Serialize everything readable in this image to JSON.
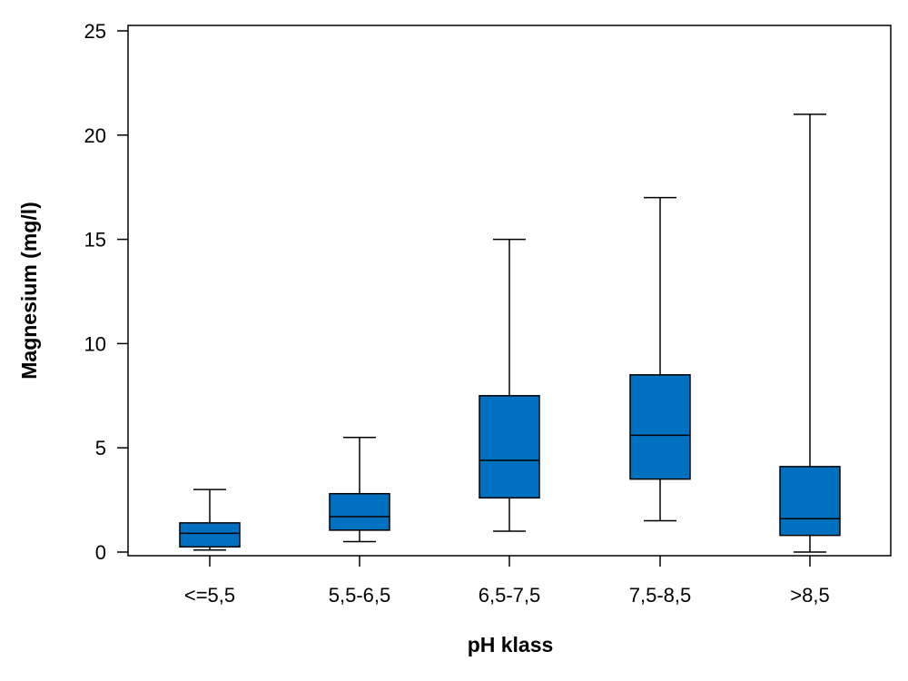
{
  "chart_data": {
    "type": "box",
    "title": "",
    "xlabel": "pH klass",
    "ylabel": "Magnesium (mg/l)",
    "ylim": [
      0,
      25
    ],
    "yticks": [
      0,
      5,
      10,
      15,
      20,
      25
    ],
    "grid": false,
    "legend": "none",
    "box_color": "#0070C0",
    "outline_color": "#000000",
    "categories": [
      "<=5,5",
      "5,5-6,5",
      "6,5-7,5",
      "7,5-8,5",
      ">8,5"
    ],
    "boxes": [
      {
        "category": "<=5,5",
        "min": 0.1,
        "q1": 0.25,
        "median": 0.9,
        "q3": 1.4,
        "max": 3.0
      },
      {
        "category": "5,5-6,5",
        "min": 0.5,
        "q1": 1.05,
        "median": 1.7,
        "q3": 2.8,
        "max": 5.5
      },
      {
        "category": "6,5-7,5",
        "min": 1.0,
        "q1": 2.6,
        "median": 4.4,
        "q3": 7.5,
        "max": 15.0
      },
      {
        "category": "7,5-8,5",
        "min": 1.5,
        "q1": 3.5,
        "median": 5.6,
        "q3": 8.5,
        "max": 17.0
      },
      {
        "category": ">8,5",
        "min": 0.0,
        "q1": 0.8,
        "median": 1.6,
        "q3": 4.1,
        "max": 21.0
      }
    ]
  }
}
